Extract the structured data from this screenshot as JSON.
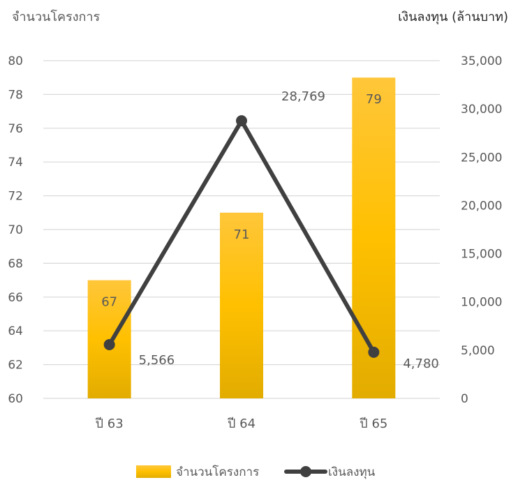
{
  "chart_data": {
    "type": "bar",
    "left_axis_title": "จำนวนโครงการ",
    "right_axis_title": "เงินลงทุน  (ล้านบาท)",
    "categories": [
      "ปี 63",
      "ปี 64",
      "ปี 65"
    ],
    "bar_series": {
      "name": "จำนวนโครงการ",
      "values": [
        67,
        71,
        79
      ],
      "labels": [
        "67",
        "71",
        "79"
      ],
      "color": "#FFC000",
      "axis": "left"
    },
    "line_series": {
      "name": "เงินลงทุน",
      "values": [
        5566,
        28769,
        4780
      ],
      "labels": [
        "5,566",
        "28,769",
        "4,780"
      ],
      "color": "#404040",
      "axis": "right"
    },
    "left_axis": {
      "min": 60,
      "max": 80,
      "step": 2,
      "ticks": [
        "60",
        "62",
        "64",
        "66",
        "68",
        "70",
        "72",
        "74",
        "76",
        "78",
        "80"
      ]
    },
    "right_axis": {
      "min": 0,
      "max": 35000,
      "step": 5000,
      "ticks": [
        "0",
        "5,000",
        "10,000",
        "15,000",
        "20,000",
        "25,000",
        "30,000",
        "35,000"
      ]
    },
    "grid": true,
    "legend_position": "bottom"
  }
}
